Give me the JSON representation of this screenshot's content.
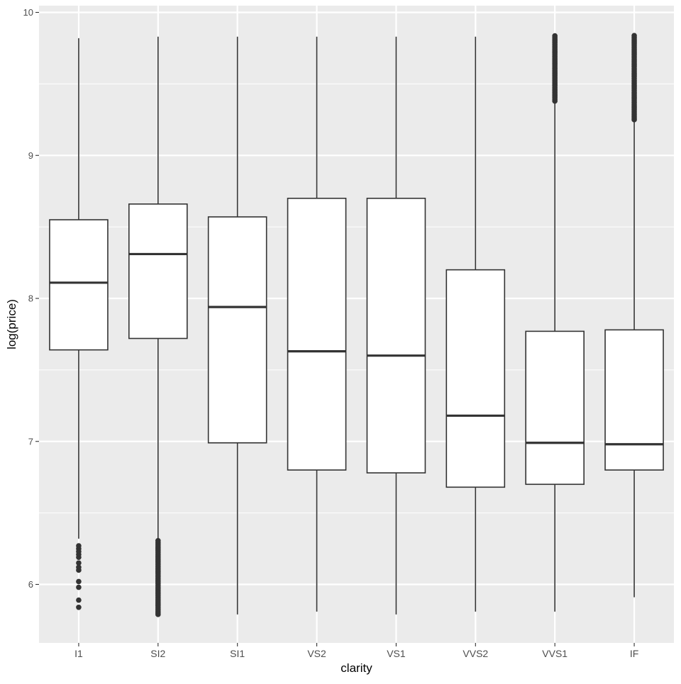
{
  "chart_data": {
    "type": "box",
    "xlabel": "clarity",
    "ylabel": "log(price)",
    "ylim": [
      5.58,
      10.04
    ],
    "y_ticks": [
      "6",
      "7",
      "8",
      "9",
      "10"
    ],
    "grid": true,
    "panel_background": "#ebebeb",
    "grid_color": "#ffffff",
    "box_fill": "#ffffff",
    "line_color": "#333333",
    "categories": [
      "I1",
      "SI2",
      "SI1",
      "VS2",
      "VS1",
      "VVS2",
      "VVS1",
      "IF"
    ],
    "boxes": [
      {
        "label": "I1",
        "whisker_low": 6.32,
        "q1": 7.64,
        "median": 8.11,
        "q3": 8.55,
        "whisker_high": 9.82,
        "outliers_low": [
          5.84,
          5.89,
          5.98,
          6.02,
          6.1,
          6.12,
          6.15,
          6.19,
          6.21,
          6.23,
          6.25,
          6.27
        ]
      },
      {
        "label": "SI2",
        "whisker_low": 6.32,
        "q1": 7.72,
        "median": 8.31,
        "q3": 8.66,
        "whisker_high": 9.83,
        "outliers_low_range": [
          5.79,
          6.31
        ]
      },
      {
        "label": "SI1",
        "whisker_low": 5.79,
        "q1": 6.99,
        "median": 7.94,
        "q3": 8.57,
        "whisker_high": 9.83
      },
      {
        "label": "VS2",
        "whisker_low": 5.81,
        "q1": 6.8,
        "median": 7.63,
        "q3": 8.7,
        "whisker_high": 9.83
      },
      {
        "label": "VS1",
        "whisker_low": 5.79,
        "q1": 6.78,
        "median": 7.6,
        "q3": 8.7,
        "whisker_high": 9.83
      },
      {
        "label": "VVS2",
        "whisker_low": 5.81,
        "q1": 6.68,
        "median": 7.18,
        "q3": 8.2,
        "whisker_high": 9.83
      },
      {
        "label": "VVS1",
        "whisker_low": 5.81,
        "q1": 6.7,
        "median": 6.99,
        "q3": 7.77,
        "whisker_high": 9.38,
        "outliers_high_range": [
          9.38,
          9.84
        ]
      },
      {
        "label": "IF",
        "whisker_low": 5.91,
        "q1": 6.8,
        "median": 6.98,
        "q3": 7.78,
        "whisker_high": 9.25,
        "outliers_high_range": [
          9.25,
          9.84
        ]
      }
    ]
  }
}
